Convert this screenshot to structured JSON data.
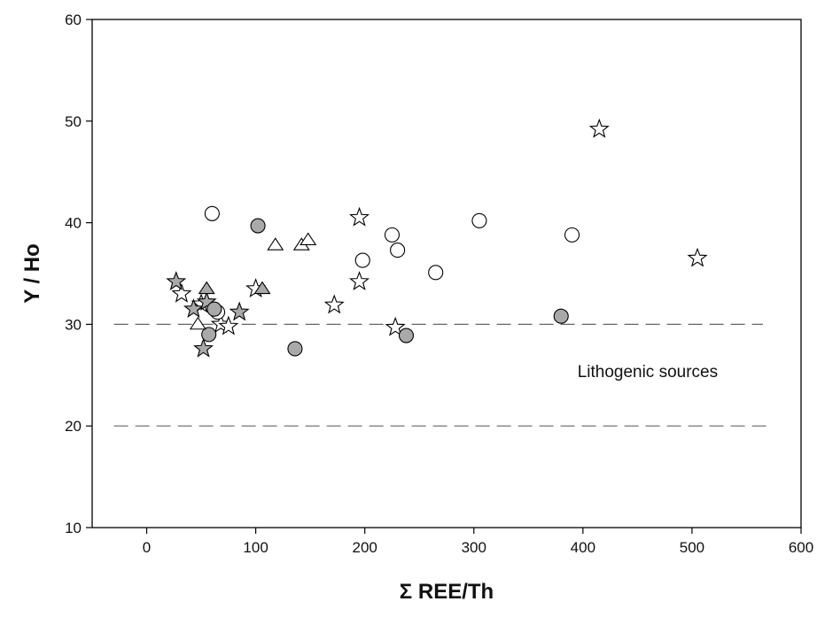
{
  "chart_data": {
    "type": "scatter",
    "title": "",
    "xlabel": "Σ REE/Th",
    "ylabel": "Y / Ho",
    "xlim": [
      -50,
      600
    ],
    "ylim": [
      10,
      60
    ],
    "xticks": [
      0,
      100,
      200,
      300,
      400,
      500,
      600
    ],
    "yticks": [
      10,
      20,
      30,
      40,
      50,
      60
    ],
    "grid": false,
    "legend": "none",
    "reference_lines": [
      {
        "y": 30,
        "x_range": [
          -30,
          565
        ],
        "style": "dashed"
      },
      {
        "y": 20,
        "x_range": [
          -30,
          570
        ],
        "style": "dashed"
      }
    ],
    "annotations": [
      {
        "text": "Lithogenic sources",
        "x": 395,
        "y": 24.8
      }
    ],
    "series": [
      {
        "marker": "star",
        "fill": "#ffffff",
        "points": [
          [
            32,
            33
          ],
          [
            50,
            32
          ],
          [
            68,
            30
          ],
          [
            75,
            29.8
          ],
          [
            100,
            33.5
          ],
          [
            172,
            31.9
          ],
          [
            195,
            34.2
          ],
          [
            195,
            40.5
          ],
          [
            228,
            29.7
          ],
          [
            415,
            49.2
          ],
          [
            505,
            36.5
          ]
        ]
      },
      {
        "marker": "star",
        "fill": "#a9a9a9",
        "points": [
          [
            27,
            34.2
          ],
          [
            43,
            31.5
          ],
          [
            52,
            27.6
          ],
          [
            55,
            32.2
          ],
          [
            85,
            31.2
          ]
        ]
      },
      {
        "marker": "circle",
        "fill": "#ffffff",
        "points": [
          [
            60,
            40.9
          ],
          [
            65,
            31.2
          ],
          [
            198,
            36.3
          ],
          [
            225,
            38.8
          ],
          [
            230,
            37.3
          ],
          [
            265,
            35.1
          ],
          [
            305,
            40.2
          ],
          [
            390,
            38.8
          ]
        ]
      },
      {
        "marker": "circle",
        "fill": "#a9a9a9",
        "points": [
          [
            57,
            29
          ],
          [
            62,
            31.5
          ],
          [
            102,
            39.7
          ],
          [
            136,
            27.6
          ],
          [
            238,
            28.9
          ],
          [
            380,
            30.8
          ]
        ]
      },
      {
        "marker": "triangle",
        "fill": "#ffffff",
        "points": [
          [
            47,
            30
          ],
          [
            118,
            37.8
          ],
          [
            142,
            37.8
          ],
          [
            148,
            38.3
          ]
        ]
      },
      {
        "marker": "triangle",
        "fill": "#a9a9a9",
        "points": [
          [
            55,
            33.5
          ],
          [
            106,
            33.5
          ]
        ]
      }
    ]
  }
}
